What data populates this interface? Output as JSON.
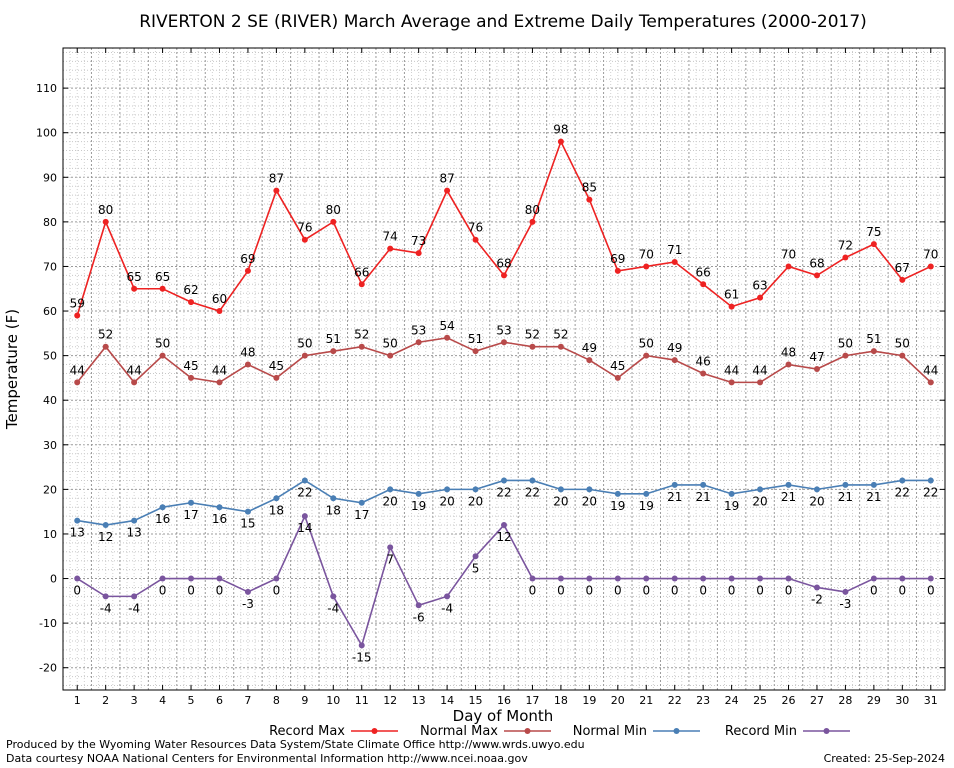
{
  "chart_data": {
    "type": "line",
    "title": "RIVERTON 2 SE (RIVER) March Average and Extreme Daily Temperatures (2000-2017)",
    "xlabel": "Day of Month",
    "ylabel": "Temperature (F)",
    "ylim": [
      -25,
      119
    ],
    "yticks": [
      -20,
      -10,
      0,
      10,
      20,
      30,
      40,
      50,
      60,
      70,
      80,
      90,
      100,
      110
    ],
    "x": [
      1,
      2,
      3,
      4,
      5,
      6,
      7,
      8,
      9,
      10,
      11,
      12,
      13,
      14,
      15,
      16,
      17,
      18,
      19,
      20,
      21,
      22,
      23,
      24,
      25,
      26,
      27,
      28,
      29,
      30,
      31
    ],
    "grid": true,
    "legend_position": "bottom",
    "series": [
      {
        "name": "Record Max",
        "color": "#ee2222",
        "label_pos": "above",
        "values": [
          59,
          80,
          65,
          65,
          62,
          60,
          69,
          87,
          76,
          80,
          66,
          74,
          73,
          87,
          76,
          68,
          80,
          98,
          85,
          69,
          70,
          71,
          66,
          61,
          63,
          70,
          68,
          72,
          75,
          67,
          70
        ]
      },
      {
        "name": "Normal Max",
        "color": "#b84a4a",
        "label_pos": "above",
        "values": [
          44,
          52,
          44,
          50,
          45,
          44,
          48,
          45,
          50,
          51,
          52,
          50,
          53,
          54,
          51,
          53,
          52,
          52,
          49,
          45,
          50,
          49,
          46,
          44,
          44,
          48,
          47,
          50,
          51,
          50,
          44
        ]
      },
      {
        "name": "Normal Min",
        "color": "#4a7fb5",
        "label_pos": "below",
        "values": [
          13,
          12,
          13,
          16,
          17,
          16,
          15,
          18,
          22,
          18,
          17,
          20,
          19,
          20,
          20,
          22,
          22,
          20,
          20,
          19,
          19,
          21,
          21,
          19,
          20,
          21,
          20,
          21,
          21,
          22,
          22
        ]
      },
      {
        "name": "Record Min",
        "color": "#7a559e",
        "label_pos": "below",
        "values": [
          0,
          -4,
          -4,
          0,
          0,
          0,
          -3,
          0,
          14,
          -4,
          -15,
          7,
          -6,
          -4,
          5,
          12,
          0,
          0,
          0,
          0,
          0,
          0,
          0,
          0,
          0,
          0,
          -2,
          -3,
          0,
          0,
          0
        ]
      }
    ]
  },
  "footer": {
    "line1": "Produced by the Wyoming Water Resources Data System/State Climate Office http://www.wrds.uwyo.edu",
    "line2": "Data courtesy NOAA National Centers for Environmental Information http://www.ncei.noaa.gov",
    "created": "Created:  25-Sep-2024"
  }
}
